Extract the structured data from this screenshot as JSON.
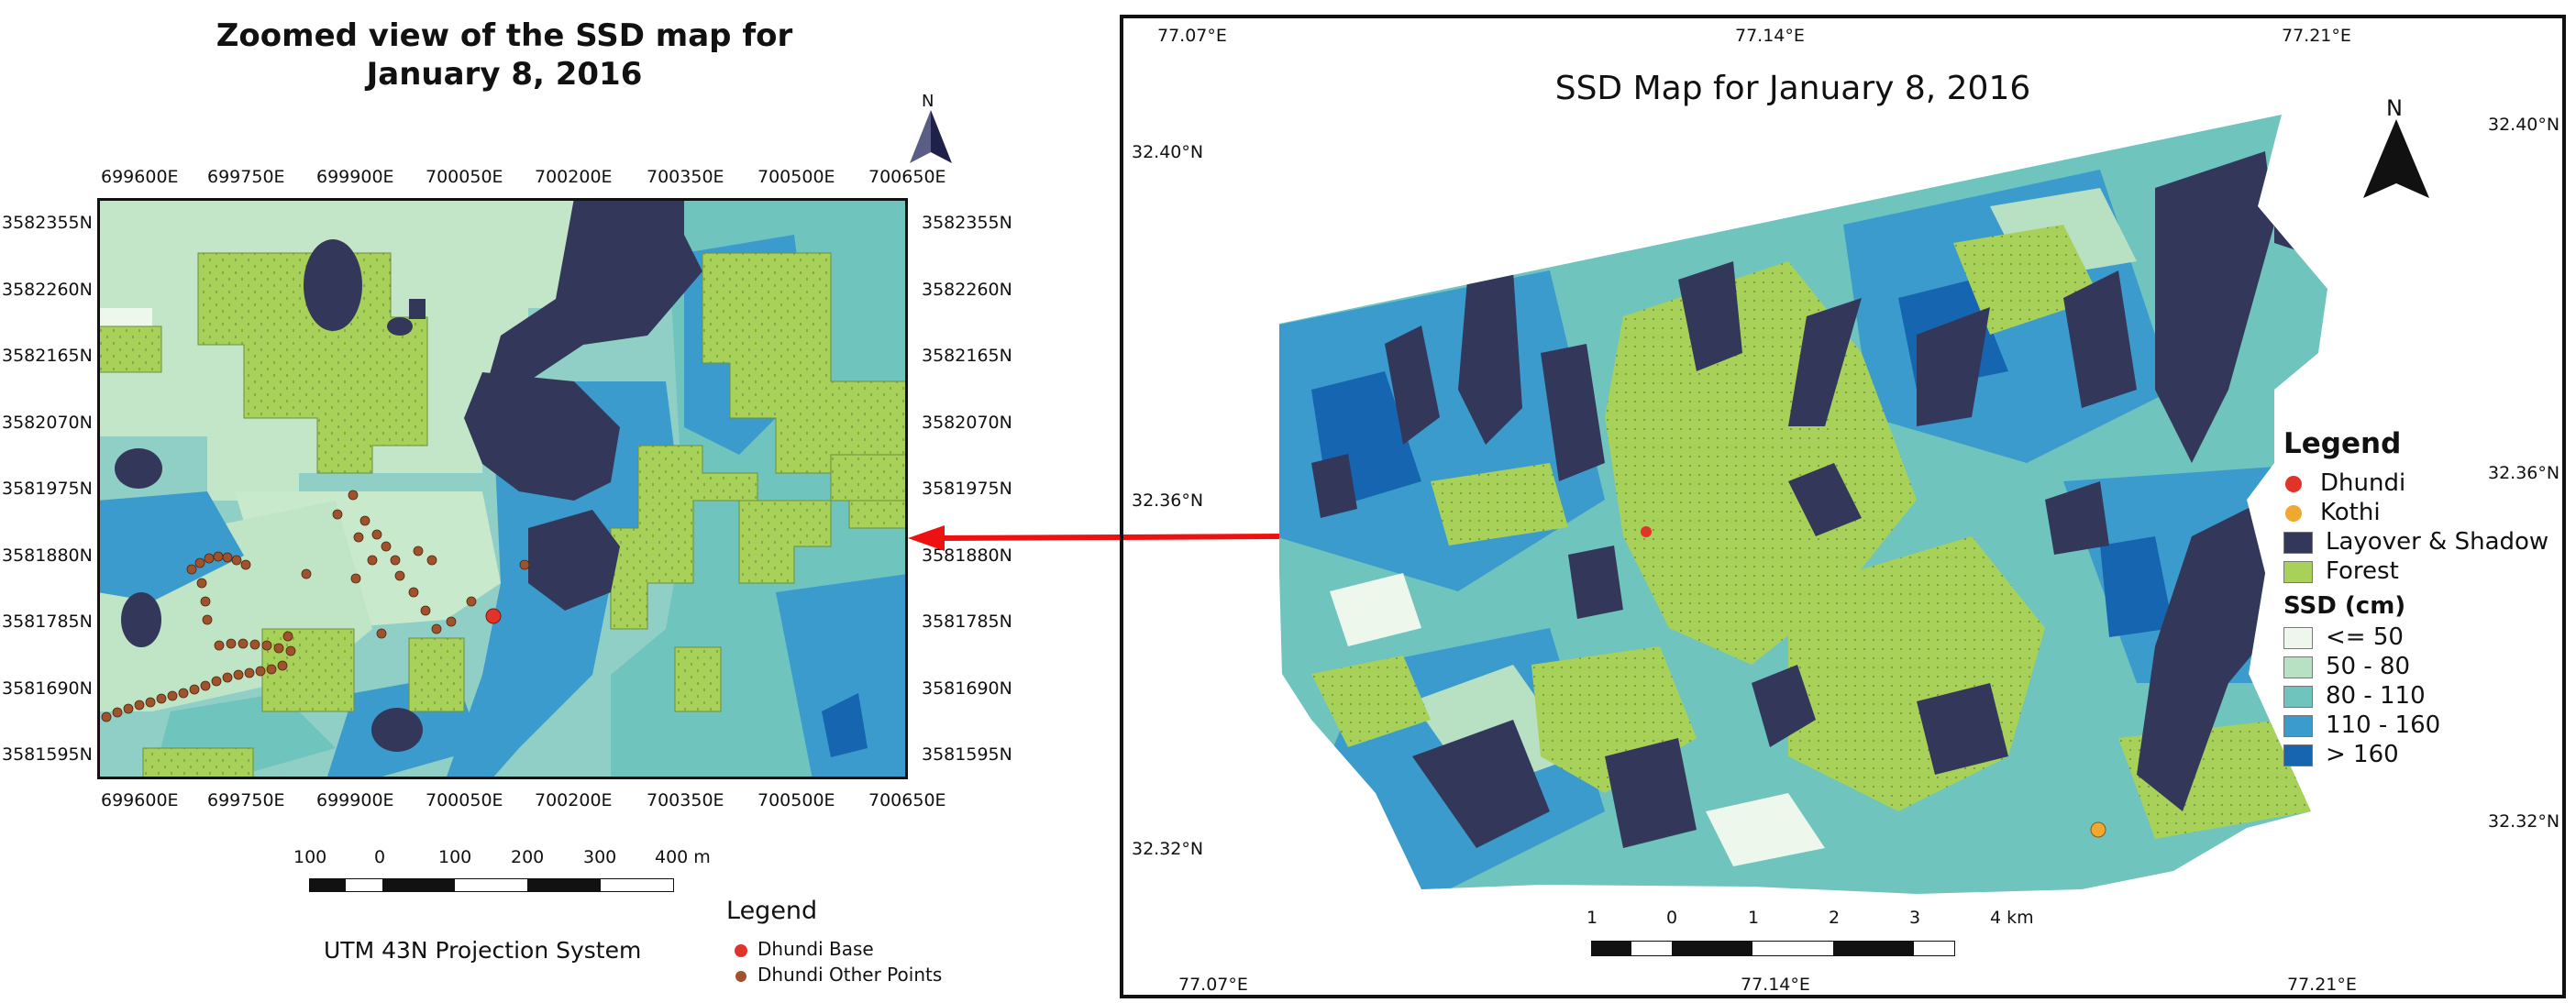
{
  "left_panel": {
    "title_line1": "Zoomed view of the SSD map for",
    "title_line2": "January 8, 2016",
    "north": "N",
    "x_ticks": [
      "699600E",
      "699750E",
      "699900E",
      "700050E",
      "700200E",
      "700350E",
      "700500E",
      "700650E"
    ],
    "y_ticks": [
      "3582355N",
      "3582260N",
      "3582165N",
      "3582070N",
      "3581975N",
      "3581880N",
      "3581785N",
      "3581690N",
      "3581595N"
    ],
    "scale_labels": [
      "100",
      "0",
      "100",
      "200",
      "300",
      "400 m"
    ],
    "projection": "UTM 43N Projection System",
    "legend": {
      "title": "Legend",
      "items": [
        {
          "label": "Dhundi Base",
          "color": "#e0332a"
        },
        {
          "label": "Dhundi Other Points",
          "color": "#a0522d"
        }
      ]
    }
  },
  "right_panel": {
    "title": "SSD Map for January 8, 2016",
    "north": "N",
    "lon_ticks": [
      "77.07°E",
      "77.14°E",
      "77.21°E"
    ],
    "lat_ticks": [
      "32.40°N",
      "32.36°N",
      "32.32°N"
    ],
    "scale_labels": [
      "1",
      "0",
      "1",
      "2",
      "3",
      "4 km"
    ],
    "legend": {
      "title": "Legend",
      "points": [
        {
          "label": "Dhundi",
          "color": "#e0332a"
        },
        {
          "label": "Kothi",
          "color": "#f0a830"
        }
      ],
      "polygons": [
        {
          "label": "Layover & Shadow",
          "color": "#33385a"
        },
        {
          "label": "Forest",
          "color": "#a8d15a"
        }
      ],
      "ssd_title": "SSD (cm)",
      "ssd_classes": [
        {
          "label": "<= 50",
          "color": "#eef7ec"
        },
        {
          "label": "50 - 80",
          "color": "#b8e0c2"
        },
        {
          "label": "80 - 110",
          "color": "#6fc4bd"
        },
        {
          "label": "110 - 160",
          "color": "#3b9bcc"
        },
        {
          "label": "> 160",
          "color": "#1565b0"
        }
      ]
    }
  }
}
